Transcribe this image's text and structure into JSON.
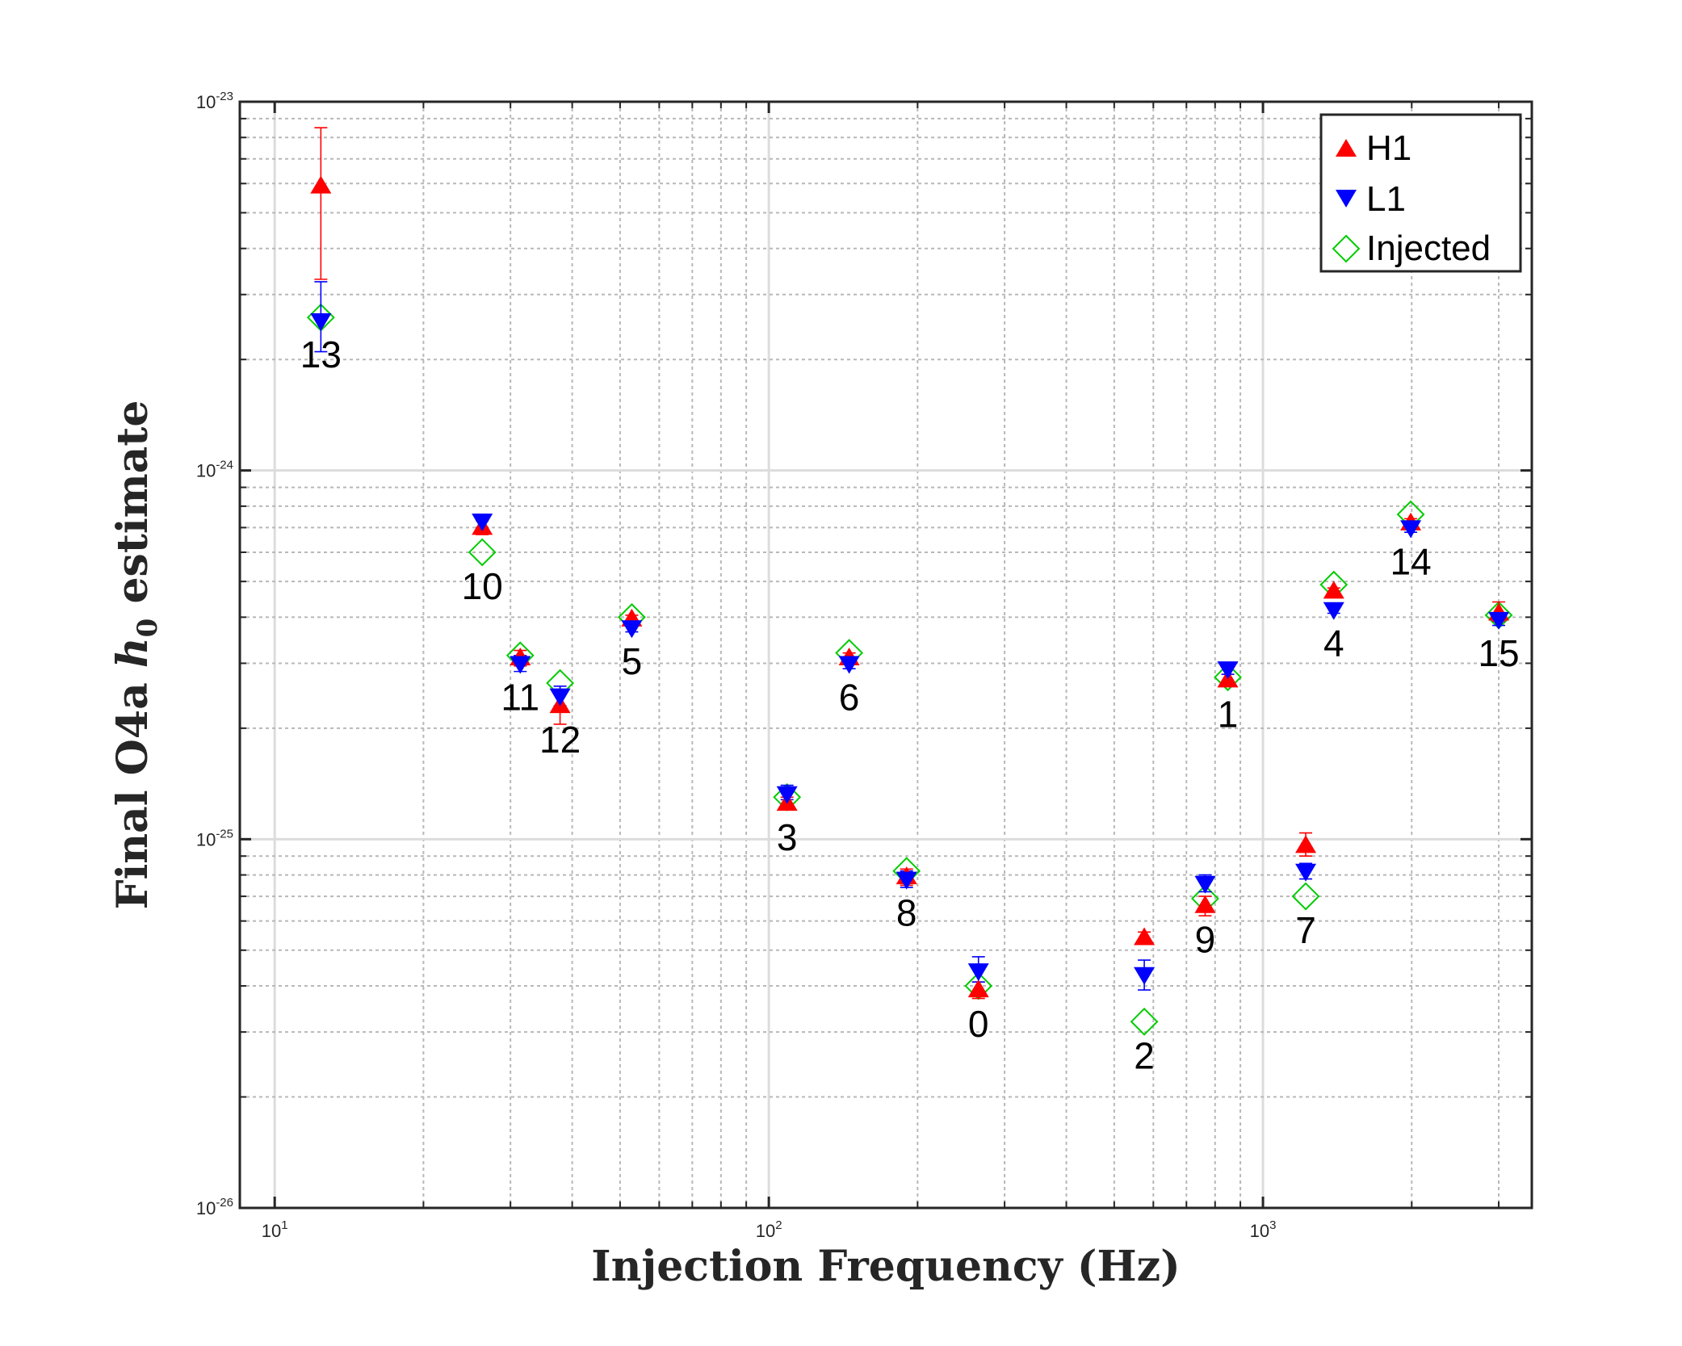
{
  "chart_data": {
    "type": "scatter",
    "xlabel": "Injection Frequency (Hz)",
    "ylabel_prefix": "Final O4a ",
    "ylabel_var": "h",
    "ylabel_sub": "0",
    "ylabel_suffix": " estimate",
    "xscale": "log",
    "yscale": "log",
    "xlim": [
      8.5,
      3500
    ],
    "ylim": [
      1e-26,
      1e-23
    ],
    "grid": true,
    "legend_position": "top-right",
    "x_ticks": [
      {
        "value": 10,
        "base": "10",
        "exp": "1"
      },
      {
        "value": 100,
        "base": "10",
        "exp": "2"
      },
      {
        "value": 1000,
        "base": "10",
        "exp": "3"
      }
    ],
    "y_ticks": [
      {
        "value": 1e-26,
        "base": "10",
        "exp": "-26"
      },
      {
        "value": 1e-25,
        "base": "10",
        "exp": "-25"
      },
      {
        "value": 1e-24,
        "base": "10",
        "exp": "-24"
      },
      {
        "value": 1e-23,
        "base": "10",
        "exp": "-23"
      }
    ],
    "legend": [
      {
        "name": "H1",
        "marker": "triangle-up",
        "color": "#ff0000"
      },
      {
        "name": "L1",
        "marker": "triangle-down",
        "color": "#0000ff"
      },
      {
        "name": "Injected",
        "marker": "diamond-open",
        "color": "#00cc00"
      }
    ],
    "points": [
      {
        "label": "0",
        "x": 265.6,
        "h1": 3.9e-26,
        "h1_err": [
          3.7e-26,
          4.1e-26
        ],
        "l1": 4.4e-26,
        "l1_err": [
          4.1e-26,
          4.8e-26
        ],
        "injected": 4e-26,
        "label_pos": "below"
      },
      {
        "label": "1",
        "x": 848.9,
        "h1": 2.7e-25,
        "h1_err": [
          2.6e-25,
          2.8e-25
        ],
        "l1": 2.9e-25,
        "l1_err": [
          2.8e-25,
          3e-25
        ],
        "injected": 2.75e-25,
        "label_pos": "below"
      },
      {
        "label": "2",
        "x": 575.16,
        "h1": 5.4e-26,
        "h1_err": [
          5.2e-26,
          5.6e-26
        ],
        "l1": 4.3e-26,
        "l1_err": [
          3.9e-26,
          4.7e-26
        ],
        "injected": 3.2e-26,
        "label_pos": "below"
      },
      {
        "label": "3",
        "x": 108.86,
        "h1": 1.25e-25,
        "h1_err": [
          1.2e-25,
          1.3e-25
        ],
        "l1": 1.33e-25,
        "l1_err": [
          1.28e-25,
          1.4e-25
        ],
        "injected": 1.3e-25,
        "label_pos": "below"
      },
      {
        "label": "4",
        "x": 1391.0,
        "h1": 4.7e-25,
        "h1_err": [
          4.6e-25,
          4.8e-25
        ],
        "l1": 4.2e-25,
        "l1_err": [
          4.1e-25,
          4.3e-25
        ],
        "injected": 4.9e-25,
        "label_pos": "below"
      },
      {
        "label": "5",
        "x": 52.8,
        "h1": 3.95e-25,
        "h1_err": [
          3.85e-25,
          4.05e-25
        ],
        "l1": 3.75e-25,
        "l1_err": [
          3.65e-25,
          3.85e-25
        ],
        "injected": 4e-25,
        "label_pos": "below"
      },
      {
        "label": "6",
        "x": 145.4,
        "h1": 3.1e-25,
        "h1_err": [
          3e-25,
          3.2e-25
        ],
        "l1": 3e-25,
        "l1_err": [
          2.9e-25,
          3.1e-25
        ],
        "injected": 3.2e-25,
        "label_pos": "below"
      },
      {
        "label": "7",
        "x": 1220.5,
        "h1": 9.6e-26,
        "h1_err": [
          9e-26,
          1.04e-25
        ],
        "l1": 8.2e-26,
        "l1_err": [
          7.8e-26,
          8.6e-26
        ],
        "injected": 7e-26,
        "label_pos": "below"
      },
      {
        "label": "8",
        "x": 190.0,
        "h1": 7.9e-26,
        "h1_err": [
          7.5e-26,
          8.3e-26
        ],
        "l1": 7.8e-26,
        "l1_err": [
          7.4e-26,
          8.2e-26
        ],
        "injected": 8.2e-26,
        "label_pos": "below"
      },
      {
        "label": "9",
        "x": 763.8,
        "h1": 6.6e-26,
        "h1_err": [
          6.2e-26,
          7e-26
        ],
        "l1": 7.6e-26,
        "l1_err": [
          7.2e-26,
          8e-26
        ],
        "injected": 6.9e-26,
        "label_pos": "below"
      },
      {
        "label": "10",
        "x": 26.3,
        "h1": 7e-25,
        "h1_err": [
          6.7e-25,
          7.3e-25
        ],
        "l1": 7.3e-25,
        "l1_err": [
          7e-25,
          7.6e-25
        ],
        "injected": 6e-25,
        "label_pos": "below"
      },
      {
        "label": "11",
        "x": 31.4,
        "h1": 3.1e-25,
        "h1_err": [
          2.95e-25,
          3.25e-25
        ],
        "l1": 3e-25,
        "l1_err": [
          2.85e-25,
          3.15e-25
        ],
        "injected": 3.15e-25,
        "label_pos": "below"
      },
      {
        "label": "12",
        "x": 37.8,
        "h1": 2.3e-25,
        "h1_err": [
          2.05e-25,
          2.55e-25
        ],
        "l1": 2.45e-25,
        "l1_err": [
          2.3e-25,
          2.6e-25
        ],
        "injected": 2.65e-25,
        "label_pos": "below"
      },
      {
        "label": "13",
        "x": 12.4,
        "h1": 5.9e-24,
        "h1_err": [
          3.3e-24,
          8.5e-24
        ],
        "l1": 2.55e-24,
        "l1_err": [
          2.1e-24,
          3.25e-24
        ],
        "injected": 2.6e-24,
        "label_pos": "below"
      },
      {
        "label": "14",
        "x": 1991.0,
        "h1": 7.2e-25,
        "h1_err": [
          7e-25,
          7.4e-25
        ],
        "l1": 7e-25,
        "l1_err": [
          6.8e-25,
          7.2e-25
        ],
        "injected": 7.6e-25,
        "label_pos": "below"
      },
      {
        "label": "15",
        "x": 3000.0,
        "h1": 4.1e-25,
        "h1_err": [
          3.9e-25,
          4.4e-25
        ],
        "l1": 3.95e-25,
        "l1_err": [
          3.8e-25,
          4.1e-25
        ],
        "injected": 4.05e-25,
        "label_pos": "below"
      }
    ]
  }
}
